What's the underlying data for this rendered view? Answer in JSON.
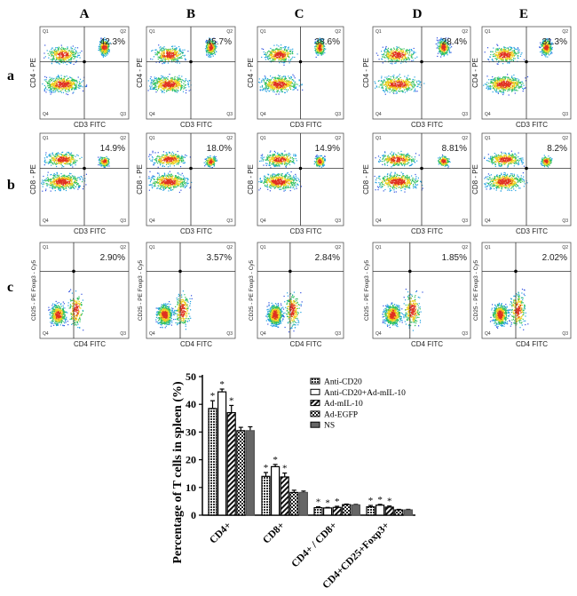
{
  "column_labels": [
    "A",
    "B",
    "C",
    "D",
    "E"
  ],
  "row_labels": [
    "a",
    "b",
    "c"
  ],
  "flow_rows": [
    {
      "y_label": "CD4 - PE",
      "x_label": "CD3 FITC",
      "percents": [
        "42.3%",
        "45.7%",
        "38.6%",
        "28.4%",
        "31.3%"
      ]
    },
    {
      "y_label": "CD8 - PE",
      "x_label": "CD3 FITC",
      "percents": [
        "14.9%",
        "18.0%",
        "14.9%",
        "8.81%",
        "8.2%"
      ]
    },
    {
      "y_label": "CD25 - PE Foxp3 - Cy5",
      "x_label": "CD4 FITC",
      "percents": [
        "2.90%",
        "3.57%",
        "2.84%",
        "1.85%",
        "2.02%"
      ]
    }
  ],
  "quadrant_labels": [
    "Q1",
    "Q2",
    "Q3",
    "Q4"
  ],
  "chart_data": {
    "type": "bar",
    "title": "",
    "xlabel": "",
    "ylabel": "Percentage of T cells in spleen (%)",
    "ylim": [
      0,
      50
    ],
    "yticks": [
      0,
      10,
      20,
      30,
      40,
      50
    ],
    "categories": [
      "CD4+",
      "CD8+",
      "CD4+ / CD8+",
      "CD4+CD25+Foxp3+"
    ],
    "legend_position": "top-right",
    "series": [
      {
        "name": "Anti-CD20",
        "values": [
          38.5,
          14.0,
          2.7,
          3.0
        ],
        "errors": [
          2.8,
          1.4,
          0.3,
          0.5
        ],
        "significant": [
          true,
          true,
          true,
          true
        ],
        "pattern": "crosshatch-dense"
      },
      {
        "name": "Anti-CD20+Ad-mIL-10",
        "values": [
          44.5,
          17.5,
          2.6,
          3.6
        ],
        "errors": [
          1.0,
          0.8,
          0.2,
          0.3
        ],
        "significant": [
          true,
          true,
          true,
          true
        ],
        "pattern": "white"
      },
      {
        "name": "Ad-mIL-10",
        "values": [
          37.0,
          13.8,
          2.8,
          2.9
        ],
        "errors": [
          2.6,
          1.4,
          0.4,
          0.4
        ],
        "significant": [
          true,
          true,
          true,
          true
        ],
        "pattern": "diagonal"
      },
      {
        "name": "Ad-EGFP",
        "values": [
          30.5,
          8.2,
          3.8,
          1.9
        ],
        "errors": [
          1.2,
          0.8,
          0.2,
          0.2
        ],
        "significant": [
          false,
          false,
          false,
          false
        ],
        "pattern": "checker"
      },
      {
        "name": "NS",
        "values": [
          30.5,
          8.2,
          3.7,
          1.9
        ],
        "errors": [
          1.4,
          0.5,
          0.2,
          0.2
        ],
        "significant": [
          false,
          false,
          false,
          false
        ],
        "pattern": "gray"
      }
    ],
    "significance_marker": "*"
  }
}
